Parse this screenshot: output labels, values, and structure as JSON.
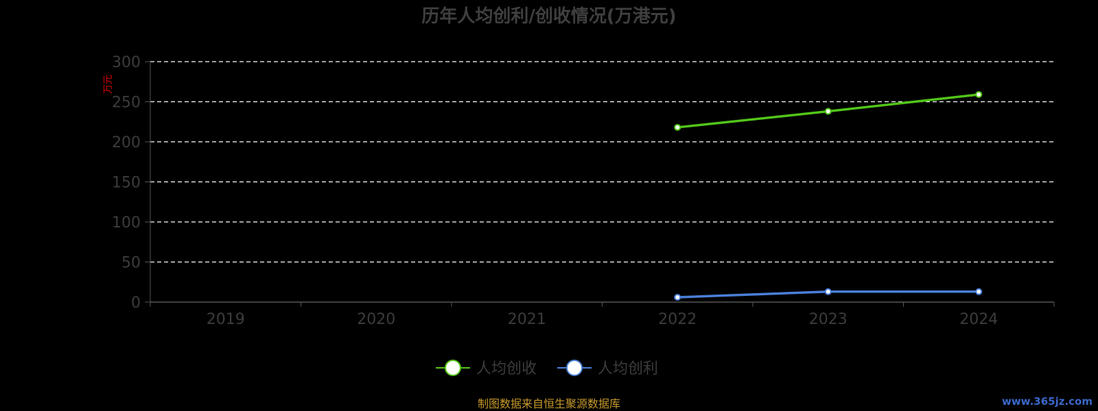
{
  "chart_data": {
    "type": "line",
    "title": "历年人均创利/创收情况(万港元)",
    "unit_label": "万元",
    "categories": [
      "2019",
      "2020",
      "2021",
      "2022",
      "2023",
      "2024"
    ],
    "ylim": [
      0,
      300
    ],
    "yticks": [
      "0",
      "50",
      "100",
      "150",
      "200",
      "250",
      "300"
    ],
    "grid": true,
    "legend_position": "bottom-center",
    "series": [
      {
        "name": "人均创收",
        "color": "#52c41a",
        "values": [
          null,
          null,
          null,
          218,
          238,
          259
        ]
      },
      {
        "name": "人均创利",
        "color": "#4a7fd8",
        "values": [
          null,
          null,
          null,
          6,
          13,
          13
        ]
      }
    ]
  },
  "footer": {
    "source": "制图数据来自恒生聚源数据库",
    "watermark": "www.365jz.com"
  }
}
